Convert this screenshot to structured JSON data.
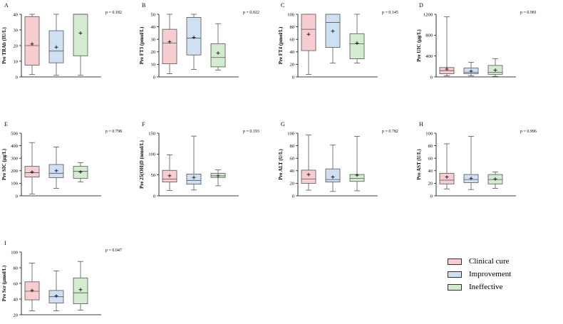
{
  "colors": {
    "Clinical cure": "#f7cdd2",
    "Improvement": "#cfe0f3",
    "Ineffective": "#d3ecd0",
    "stroke": "#555555"
  },
  "legend": {
    "placement": "bottom-right",
    "items": [
      {
        "name": "Clinical cure",
        "color": "#f7cdd2"
      },
      {
        "name": "Improvement",
        "color": "#cfe0f3"
      },
      {
        "name": "Ineffective",
        "color": "#d3ecd0"
      }
    ]
  },
  "chart_data": [
    {
      "type": "box",
      "panel": "A",
      "ylabel": "Pre TRAb (IU/L)",
      "pvalue": "p = 0.182",
      "ylim": [
        0,
        40
      ],
      "yticks": [
        0,
        10,
        20,
        30,
        40
      ],
      "series": [
        {
          "name": "Clinical cure",
          "min": 1.5,
          "q1": 7.5,
          "median": 20,
          "q3": 38.5,
          "max": 40,
          "mean": 21
        },
        {
          "name": "Improvement",
          "min": 1,
          "q1": 9,
          "median": 16.5,
          "q3": 29.5,
          "max": 40,
          "mean": 19
        },
        {
          "name": "Ineffective",
          "min": 1,
          "q1": 13.5,
          "median": 40,
          "q3": 40,
          "max": 40,
          "mean": 28
        }
      ]
    },
    {
      "type": "box",
      "panel": "B",
      "ylabel": "Pre FT3 (pmol/L)",
      "pvalue": "p = 0.022",
      "ylim": [
        0,
        50
      ],
      "yticks": [
        0,
        10,
        20,
        30,
        40,
        50
      ],
      "series": [
        {
          "name": "Clinical cure",
          "min": 2.5,
          "q1": 10.5,
          "median": 27,
          "q3": 38,
          "max": 50,
          "mean": 28
        },
        {
          "name": "Improvement",
          "min": 6,
          "q1": 17.5,
          "median": 31,
          "q3": 47.5,
          "max": 50,
          "mean": 31.5
        },
        {
          "name": "Ineffective",
          "min": 5.5,
          "q1": 8,
          "median": 15.5,
          "q3": 26.5,
          "max": 42.5,
          "mean": 19
        }
      ]
    },
    {
      "type": "box",
      "panel": "C",
      "ylabel": "Pre FT4 (pmol/L)",
      "pvalue": "p = 0.145",
      "ylim": [
        0,
        100
      ],
      "yticks": [
        0,
        20,
        40,
        60,
        80,
        100
      ],
      "series": [
        {
          "name": "Clinical cure",
          "min": 4,
          "q1": 42,
          "median": 76,
          "q3": 100,
          "max": 100,
          "mean": 68
        },
        {
          "name": "Improvement",
          "min": 22,
          "q1": 47,
          "median": 87,
          "q3": 100,
          "max": 100,
          "mean": 73
        },
        {
          "name": "Ineffective",
          "min": 22,
          "q1": 29,
          "median": 53,
          "q3": 69,
          "max": 100,
          "mean": 54
        }
      ]
    },
    {
      "type": "box",
      "panel": "D",
      "ylabel": "Pre UIC (μg/L)",
      "pvalue": "p = 0.981",
      "ylim": [
        0,
        1200
      ],
      "yticks": [
        0,
        400,
        800,
        1200
      ],
      "series": [
        {
          "name": "Clinical cure",
          "min": 20,
          "q1": 60,
          "median": 120,
          "q3": 180,
          "max": 1150,
          "mean": 150
        },
        {
          "name": "Improvement",
          "min": 20,
          "q1": 60,
          "median": 90,
          "q3": 170,
          "max": 280,
          "mean": 110
        },
        {
          "name": "Ineffective",
          "min": 10,
          "q1": 50,
          "median": 90,
          "q3": 220,
          "max": 350,
          "mean": 130
        }
      ]
    },
    {
      "type": "box",
      "panel": "E",
      "ylabel": "Pre SIC (μg/L)",
      "pvalue": "p = 0.798",
      "ylim": [
        0,
        500
      ],
      "yticks": [
        0,
        100,
        200,
        300,
        400,
        500
      ],
      "series": [
        {
          "name": "Clinical cure",
          "min": 15,
          "q1": 150,
          "median": 185,
          "q3": 235,
          "max": 425,
          "mean": 190
        },
        {
          "name": "Improvement",
          "min": 60,
          "q1": 145,
          "median": 180,
          "q3": 250,
          "max": 390,
          "mean": 200
        },
        {
          "name": "Ineffective",
          "min": 110,
          "q1": 140,
          "median": 195,
          "q3": 235,
          "max": 265,
          "mean": 190
        }
      ]
    },
    {
      "type": "box",
      "panel": "F",
      "ylabel": "Pre 25(OH)D (nmol/L)",
      "pvalue": "p = 0.193",
      "ylim": [
        0,
        150
      ],
      "yticks": [
        0,
        50,
        100,
        150
      ],
      "series": [
        {
          "name": "Clinical cure",
          "min": 13,
          "q1": 33,
          "median": 40,
          "q3": 61,
          "max": 98,
          "mean": 48
        },
        {
          "name": "Improvement",
          "min": 14,
          "q1": 28,
          "median": 37,
          "q3": 52,
          "max": 143,
          "mean": 44
        },
        {
          "name": "Ineffective",
          "min": 24,
          "q1": 44,
          "median": 48,
          "q3": 54,
          "max": 62,
          "mean": 48
        }
      ]
    },
    {
      "type": "box",
      "panel": "G",
      "ylabel": "Pre ALT (U/L)",
      "pvalue": "p = 0.782",
      "ylim": [
        0,
        100
      ],
      "yticks": [
        0,
        20,
        40,
        60,
        80,
        100
      ],
      "series": [
        {
          "name": "Clinical cure",
          "min": 9,
          "q1": 20,
          "median": 27,
          "q3": 41,
          "max": 97,
          "mean": 34
        },
        {
          "name": "Improvement",
          "min": 7,
          "q1": 22,
          "median": 26,
          "q3": 43,
          "max": 81,
          "mean": 30
        },
        {
          "name": "Ineffective",
          "min": 8,
          "q1": 23,
          "median": 28,
          "q3": 34,
          "max": 95,
          "mean": 33
        }
      ]
    },
    {
      "type": "box",
      "panel": "H",
      "ylabel": "Pre AST (U/L)",
      "pvalue": "p = 0.996",
      "ylim": [
        0,
        100
      ],
      "yticks": [
        0,
        20,
        40,
        60,
        80,
        100
      ],
      "series": [
        {
          "name": "Clinical cure",
          "min": 11,
          "q1": 19,
          "median": 25,
          "q3": 36,
          "max": 83,
          "mean": 30
        },
        {
          "name": "Improvement",
          "min": 10,
          "q1": 21,
          "median": 26,
          "q3": 34,
          "max": 95,
          "mean": 28
        },
        {
          "name": "Ineffective",
          "min": 12,
          "q1": 19,
          "median": 26,
          "q3": 34,
          "max": 38,
          "mean": 27
        }
      ]
    },
    {
      "type": "box",
      "panel": "I",
      "ylabel": "Pre Scr (μmol/L)",
      "pvalue": "p = 0.047",
      "ylim": [
        20,
        100
      ],
      "yticks": [
        20,
        40,
        60,
        80,
        100
      ],
      "series": [
        {
          "name": "Clinical cure",
          "min": 25,
          "q1": 39,
          "median": 50,
          "q3": 62,
          "max": 86,
          "mean": 51
        },
        {
          "name": "Improvement",
          "min": 25,
          "q1": 35,
          "median": 43,
          "q3": 51,
          "max": 76,
          "mean": 44
        },
        {
          "name": "Ineffective",
          "min": 26,
          "q1": 34,
          "median": 48,
          "q3": 67,
          "max": 88,
          "mean": 52
        }
      ]
    }
  ]
}
